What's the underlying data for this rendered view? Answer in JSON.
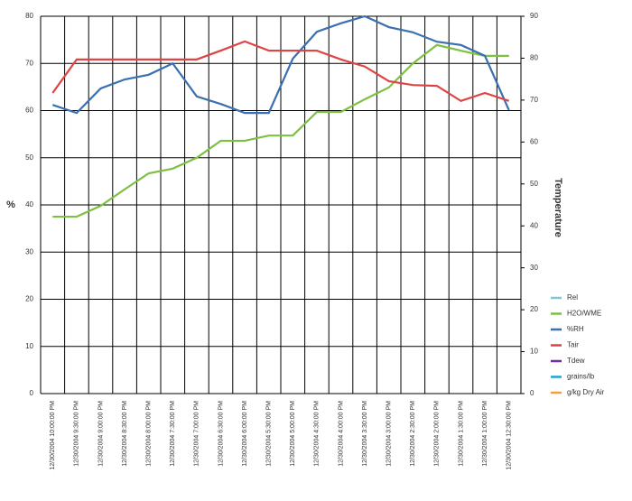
{
  "chart_data": {
    "type": "line",
    "ylabel": "%",
    "y2label": "Temperature",
    "categories": [
      "12/30/2004 10:00:00 PM",
      "12/30/2004 9:30:00 PM",
      "12/30/2004 9:00:00 PM",
      "12/30/2004 8:30:00 PM",
      "12/30/2004 8:00:00 PM",
      "12/30/2004 7:30:00 PM",
      "12/30/2004 7:00:00 PM",
      "12/30/2004 6:30:00 PM",
      "12/30/2004 6:00:00 PM",
      "12/30/2004 5:30:00 PM",
      "12/30/2004 5:00:00 PM",
      "12/30/2004 4:30:00 PM",
      "12/30/2004 4:00:00 PM",
      "12/30/2004 3:30:00 PM",
      "12/30/2004 3:00:00 PM",
      "12/30/2004 2:30:00 PM",
      "12/30/2004 2:00:00 PM",
      "12/30/2004 1:30:00 PM",
      "12/30/2004 1:00:00 PM",
      "12/30/2004 12:30:00 PM"
    ],
    "ylim": [
      0,
      80
    ],
    "yticks": [
      0,
      10,
      20,
      30,
      40,
      50,
      60,
      70,
      80
    ],
    "y2lim": [
      0,
      90
    ],
    "y2ticks": [
      0,
      10,
      20,
      30,
      40,
      50,
      60,
      70,
      80,
      90
    ],
    "grid": true,
    "legend": "right",
    "series": [
      {
        "name": "Rel",
        "color": "#7fc8d0",
        "values": [
          null,
          null,
          null,
          null,
          null,
          null,
          null,
          null,
          null,
          null,
          null,
          null,
          null,
          null,
          null,
          null,
          null,
          null,
          null,
          null
        ]
      },
      {
        "name": "H2O/WME",
        "color": "#7dc142",
        "values": [
          37.5,
          37.5,
          39.8,
          43.3,
          46.7,
          47.7,
          50,
          53.6,
          53.6,
          54.7,
          54.7,
          59.7,
          59.7,
          62.4,
          64.9,
          70,
          73.9,
          72.7,
          71.6,
          71.6
        ]
      },
      {
        "name": "%RH",
        "color": "#3a6fb0",
        "values": [
          61.2,
          59.5,
          64.7,
          66.6,
          67.6,
          70,
          63,
          61.4,
          59.5,
          59.5,
          71,
          76.7,
          78.5,
          80,
          77.7,
          76.6,
          74.6,
          73.9,
          71.6,
          60.1
        ]
      },
      {
        "name": "Tair",
        "color": "#e04343",
        "axis": "y2",
        "values": [
          71.7,
          79.7,
          79.7,
          79.7,
          79.7,
          79.7,
          79.7,
          81.8,
          84,
          81.8,
          81.8,
          81.8,
          79.7,
          78,
          74.5,
          73.6,
          73.4,
          69.8,
          71.7,
          69.8
        ]
      },
      {
        "name": "Tdew",
        "color": "#7030a0",
        "values": [
          null,
          null,
          null,
          null,
          null,
          null,
          null,
          null,
          null,
          null,
          null,
          null,
          null,
          null,
          null,
          null,
          null,
          null,
          null,
          null
        ]
      },
      {
        "name": "grains/lb",
        "color": "#1fa6d6",
        "values": [
          null,
          null,
          null,
          null,
          null,
          null,
          null,
          null,
          null,
          null,
          null,
          null,
          null,
          null,
          null,
          null,
          null,
          null,
          null,
          null
        ]
      },
      {
        "name": "g/kg Dry Air",
        "color": "#f5a030",
        "values": [
          null,
          null,
          null,
          null,
          null,
          null,
          null,
          null,
          null,
          null,
          null,
          null,
          null,
          null,
          null,
          null,
          null,
          null,
          null,
          null
        ]
      }
    ]
  }
}
